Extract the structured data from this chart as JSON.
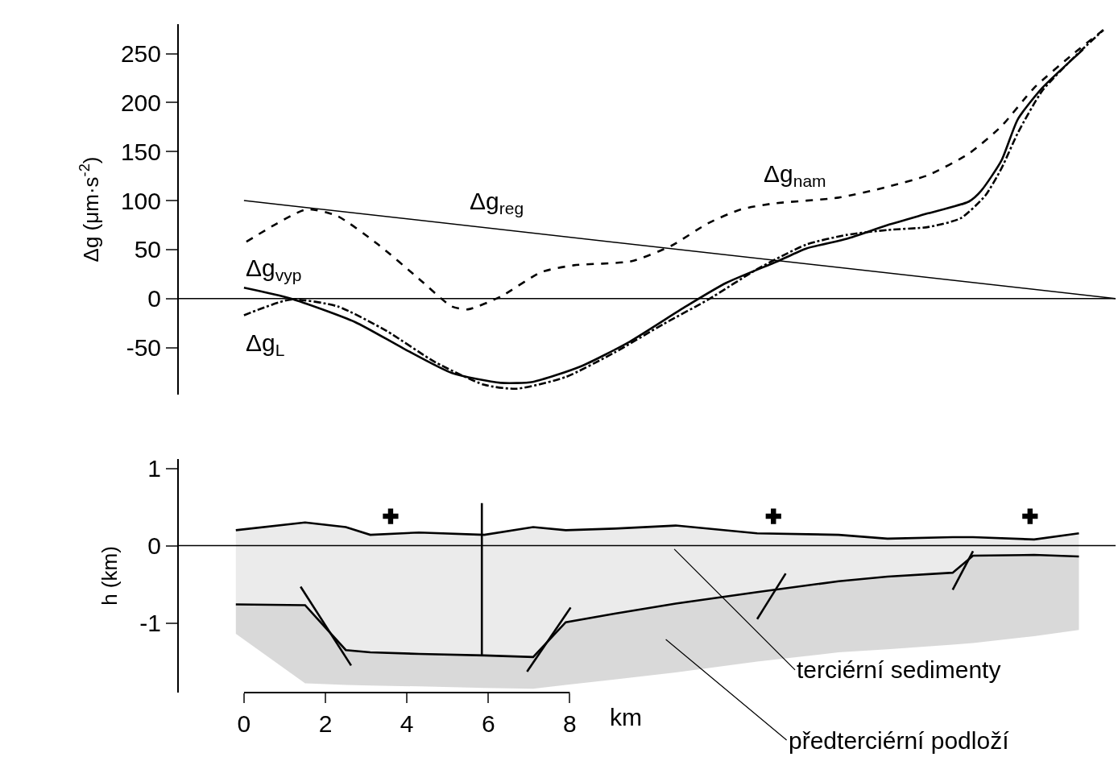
{
  "chart_data": [
    {
      "type": "line",
      "ylabel": "Δg (μm·s$^{-2}$)",
      "xlim": [
        -1.6,
        21.4
      ],
      "ylim": [
        -98,
        280
      ],
      "yticks": [
        -50,
        0,
        50,
        100,
        150,
        200,
        250
      ],
      "tick_labels": "y",
      "series": [
        {
          "name": "Δg$_{vyp}$",
          "color": "#000000",
          "line_style": "solid",
          "x": [
            0,
            1.15,
            2.73,
            3.92,
            5.11,
            6.3,
            7.09,
            8.28,
            9.47,
            10.85,
            11.84,
            13.1,
            13.8,
            14.8,
            15.8,
            16.8,
            17.8,
            18.1,
            18.6,
            19.0,
            19.6,
            20.6
          ],
          "values": [
            11,
            0,
            -24,
            -51,
            -76,
            -86,
            -85,
            -69,
            -44,
            -8,
            16,
            38,
            51,
            61,
            75,
            87,
            99,
            110,
            141,
            183,
            215,
            254
          ]
        },
        {
          "name": "Δg$_{L}$",
          "color": "#000000",
          "line_style": "dashdot",
          "x": [
            0,
            1.15,
            2.3,
            3.5,
            4.7,
            5.9,
            6.7,
            7.9,
            9.1,
            10.3,
            11.4,
            12.6,
            13.8,
            14.8,
            15.8,
            16.8,
            17.6,
            18.2,
            18.6,
            19.0,
            19.6,
            20.4,
            21.1
          ],
          "values": [
            -17,
            -1,
            -8,
            -33,
            -65,
            -88,
            -92,
            -80,
            -55,
            -26,
            -1,
            30,
            55,
            65,
            70,
            73,
            82,
            105,
            133,
            169,
            212,
            247,
            274
          ]
        },
        {
          "name": "Δg$_{nam}$",
          "color": "#000000",
          "line_style": "dashed",
          "x": [
            0.06,
            1.54,
            2.3,
            3.3,
            4.3,
            5.1,
            5.5,
            6.3,
            7.3,
            8.1,
            9.5,
            10.5,
            11.4,
            12.2,
            13.0,
            14.6,
            15.8,
            16.8,
            17.8,
            18.6,
            19.4,
            20.4,
            21.1
          ],
          "values": [
            58,
            91,
            84,
            55,
            20,
            -8,
            -11,
            2,
            27,
            34,
            38,
            54,
            77,
            91,
            97,
            103,
            114,
            126,
            148,
            176,
            215,
            251,
            274
          ]
        },
        {
          "name": "Δg$_{reg}$",
          "color": "#000000",
          "line_style": "solid",
          "x": [
            0,
            21.4
          ],
          "values": [
            100,
            0
          ]
        }
      ],
      "ref_lines": [
        {
          "axis": "y",
          "value": 0,
          "color": "#000000"
        }
      ]
    },
    {
      "type": "line",
      "ylabel": "h (km)",
      "xlabel": "km",
      "xlim": [
        -1.6,
        21.4
      ],
      "xticks": [
        0,
        2,
        4,
        6,
        8
      ],
      "ylim": [
        -1.9,
        1.12
      ],
      "yticks": [
        -1,
        0,
        1
      ],
      "series": [
        {
          "color": "#000000",
          "x": [
            -0.2,
            1.5,
            2.5,
            3.1,
            4.3,
            5.9,
            7.1,
            7.9,
            9.1,
            10.6,
            12.6,
            14.6,
            15.8,
            17.4,
            17.9,
            19.4,
            20.5
          ],
          "values": [
            0.2,
            0.3,
            0.24,
            0.14,
            0.17,
            0.14,
            0.24,
            0.2,
            0.22,
            0.26,
            0.16,
            0.14,
            0.09,
            0.11,
            0.11,
            0.08,
            0.16
          ],
          "upper": [
            0.2,
            0.3,
            0.24,
            0.14,
            0.17,
            0.14,
            0.24,
            0.2,
            0.22,
            0.26,
            0.16,
            0.14,
            0.09,
            0.11,
            0.11,
            0.08,
            0.16
          ],
          "lower": [
            -0.76,
            -0.77,
            -1.35,
            -1.38,
            -1.4,
            -1.42,
            -1.44,
            -0.99,
            -0.88,
            -0.75,
            -0.6,
            -0.46,
            -0.4,
            -0.35,
            -0.13,
            -0.12,
            -0.14
          ]
        },
        {
          "color": "#000000",
          "x": [
            -0.2,
            1.5,
            2.5,
            3.1,
            4.3,
            5.9,
            7.1,
            7.9,
            9.1,
            10.6,
            12.6,
            14.6,
            15.8,
            17.4,
            17.9,
            19.4,
            20.5
          ],
          "values": [
            -0.76,
            -0.77,
            -1.35,
            -1.38,
            -1.4,
            -1.42,
            -1.44,
            -0.99,
            -0.88,
            -0.75,
            -0.6,
            -0.46,
            -0.4,
            -0.35,
            -0.13,
            -0.12,
            -0.14
          ],
          "upper": [
            -0.76,
            -0.77,
            -1.35,
            -1.38,
            -1.4,
            -1.42,
            -1.44,
            -0.99,
            -0.88,
            -0.75,
            -0.6,
            -0.46,
            -0.4,
            -0.35,
            -0.13,
            -0.12,
            -0.14
          ],
          "lower": [
            -1.14,
            -1.78,
            -1.8,
            -1.81,
            -1.82,
            -1.84,
            -1.85,
            -1.8,
            -1.73,
            -1.64,
            -1.5,
            -1.38,
            -1.34,
            -1.28,
            -1.26,
            -1.17,
            -1.09
          ]
        },
        {
          "color": "#000000",
          "x": [
            1.39,
            2.63
          ],
          "values": [
            -0.53,
            -1.55
          ]
        },
        {
          "color": "#000000",
          "x": [
            8.02,
            6.95
          ],
          "values": [
            -0.8,
            -1.63
          ]
        },
        {
          "color": "#000000",
          "x": [
            13.3,
            12.6
          ],
          "values": [
            -0.36,
            -0.95
          ]
        },
        {
          "color": "#000000",
          "x": [
            17.9,
            17.4
          ],
          "values": [
            -0.07,
            -0.57
          ]
        },
        {
          "color": "#000000",
          "x": [
            5.84,
            5.84
          ],
          "values": [
            -1.42,
            0.55
          ]
        },
        {
          "type": "scatter",
          "color": "#000000",
          "marker": "cross",
          "x": [
            3.6,
            13.0,
            19.3
          ],
          "values": [
            0.38,
            0.38,
            0.38
          ]
        }
      ],
      "ref_lines": [
        {
          "axis": "y",
          "value": 0,
          "color": "#000000"
        }
      ],
      "annotations": [
        "terciérní sedimenty",
        "předterciérní podloží"
      ]
    }
  ]
}
